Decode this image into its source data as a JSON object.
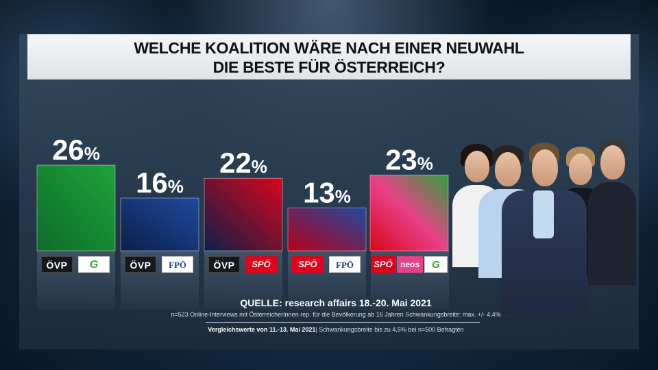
{
  "title": {
    "line1": "WELCHE KOALITION WÄRE NACH EINER NEUWAHL",
    "line2": "DIE BESTE FÜR ÖSTERREICH?"
  },
  "chart_data": {
    "type": "bar",
    "title": "WELCHE KOALITION WÄRE NACH EINER NEUWAHL DIE BESTE FÜR ÖSTERREICH?",
    "categories": [
      "ÖVP + Grüne",
      "ÖVP + FPÖ",
      "ÖVP + SPÖ",
      "SPÖ + FPÖ",
      "SPÖ + NEOS + Grüne"
    ],
    "values": [
      26,
      16,
      22,
      13,
      23
    ],
    "value_labels": [
      "26",
      "16",
      "22",
      "13",
      "23"
    ],
    "unit": "%",
    "ylim": [
      0,
      30
    ],
    "grid": false,
    "bar_colors": [
      [
        "#0d6b2a",
        "#1fa33a"
      ],
      [
        "#0c1f4a",
        "#1f4a9e"
      ],
      [
        "#0c1f4a",
        "#d8061b"
      ],
      [
        "#b8001b",
        "#1f4a9e"
      ],
      [
        "#d8061b",
        "#e84188",
        "#2fa23a"
      ]
    ]
  },
  "logos": [
    [
      "ÖVP",
      "G"
    ],
    [
      "ÖVP",
      "FPÖ"
    ],
    [
      "ÖVP",
      "SPÖ"
    ],
    [
      "SPÖ",
      "FPÖ"
    ],
    [
      "SPÖ",
      "neos",
      "G"
    ]
  ],
  "source": {
    "title": "QUELLE: research affairs 18.-20. Mai 2021",
    "detail": "n=523 Online-Interviews mit ÖsterreicherInnen rep. für die Bevölkerung ab 16 Jahren  Schwankungsbreite: max. +/- 4,4%",
    "compare_bold": "Vergleichswerte von  11.-13. Mai 2021",
    "compare_rest": "| Schwankungsbreite bis zu 4,5% bei n=500 Befragten"
  }
}
